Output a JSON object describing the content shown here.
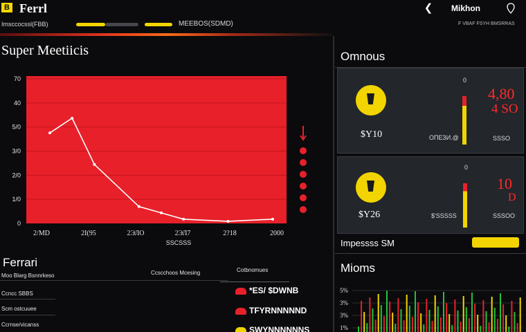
{
  "header": {
    "logo": "B",
    "title": "Ferrl",
    "sub_label": "Imsccocssl(FBB)",
    "mid_label": "MEEBOS(SDMD)",
    "user_name": "Mikhon",
    "right_caption": "F VBAF FSYH BMSRRAS",
    "colors": {
      "yellow": "#f2d400",
      "gray": "#44464c"
    }
  },
  "main_chart": {
    "title": "Super Meetiicis",
    "colors": {
      "area": "#e8202a",
      "line": "#ffffff",
      "dots": "#e8202a"
    },
    "side_dots": 6
  },
  "chart_data": {
    "type": "line",
    "title": "Super Meetiicis",
    "y_tick_labels": [
      "70",
      "40",
      "5/0",
      "3/0",
      "2/0",
      "1/0",
      "0"
    ],
    "x_tick_labels": [
      "2/MD",
      "2I(95",
      "2ЭЛО",
      "2ЭЛ7",
      "2?18",
      "2000"
    ],
    "x_axis_caption": "SSCSSS",
    "ylim": [
      0,
      70
    ],
    "x": [
      0,
      0.5,
      1,
      2,
      2.5,
      3,
      4,
      5
    ],
    "values": [
      43,
      50,
      28,
      8,
      5,
      2,
      1,
      2
    ]
  },
  "table": {
    "title": "Ferrari",
    "col_headers": [
      "Ccscchoos Mcesing",
      "Cotbnomues"
    ],
    "rows": [
      {
        "label": "Moo Blarg Bsnnrkeso"
      },
      {
        "label": "Ccncc SBBS"
      },
      {
        "label": "Scm ostcuuee"
      },
      {
        "label": "Ccrnse/vicanss"
      }
    ],
    "ranks": [
      {
        "text": "*ES/ $DWNB",
        "color": "#e8202a"
      },
      {
        "text": "TFYRNNNNND",
        "color": "#e8202a"
      },
      {
        "text": "SWYNNNNNNS",
        "color": "#f2d400"
      }
    ]
  },
  "omnious": {
    "title": "Omnous",
    "cards": [
      {
        "value": "$Y10",
        "small_a": "ОПЕЗИ.@",
        "small_b": "SSSO",
        "zero": "0",
        "big_red_a": "4,80",
        "big_red_b": "4 SO",
        "level": 0.75
      },
      {
        "value": "$Y26",
        "small_a": "$'SSSSS",
        "small_b": "SSSOO",
        "zero": "0",
        "big_red_a": "10",
        "big_red_b": "D",
        "level": 0.62
      }
    ]
  },
  "impress": {
    "label": "Impessss SM",
    "fill": 1.0
  },
  "mioms": {
    "title": "Mioms",
    "y_tick_labels": [
      "5%",
      "3%",
      "3%",
      "1%"
    ]
  }
}
